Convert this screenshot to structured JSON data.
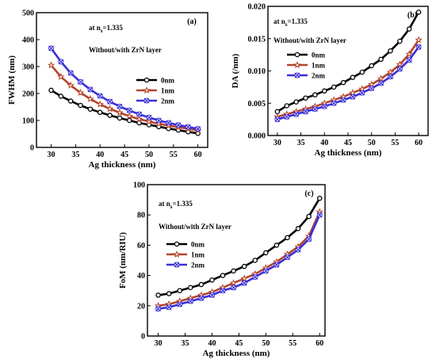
{
  "chart_data": [
    {
      "type": "line",
      "panel_label": "(a)",
      "xlabel": "Ag thickness (nm)",
      "ylabel": "FWHM (nm)",
      "xlim": [
        27,
        62
      ],
      "ylim": [
        0,
        500
      ],
      "xticks": [
        30,
        35,
        40,
        45,
        50,
        55,
        60
      ],
      "yticks": [
        0,
        100,
        200,
        300,
        400,
        500
      ],
      "ytick_labels": [
        "0",
        "100",
        "200",
        "300",
        "400",
        "500"
      ],
      "annotation_prefix": "at n",
      "annotation_sub": "s",
      "annotation_suffix": "=1.335",
      "legend_title": "Without/with ZrN layer",
      "x": [
        30,
        32,
        34,
        36,
        38,
        40,
        42,
        44,
        46,
        48,
        50,
        52,
        54,
        56,
        58,
        60
      ],
      "series": [
        {
          "name": "0nm",
          "color": "#000000",
          "marker": "circle",
          "values": [
            212,
            190,
            172,
            156,
            142,
            130,
            119,
            109,
            100,
            91,
            84,
            77,
            70,
            64,
            58,
            52
          ]
        },
        {
          "name": "1nm",
          "color": "#b5442a",
          "marker": "star",
          "values": [
            305,
            262,
            230,
            203,
            180,
            160,
            143,
            129,
            116,
            105,
            96,
            88,
            81,
            75,
            69,
            63
          ]
        },
        {
          "name": "2nm",
          "color": "#3a2fd6",
          "marker": "cross",
          "values": [
            368,
            318,
            276,
            243,
            215,
            191,
            170,
            152,
            137,
            123,
            111,
            100,
            91,
            83,
            76,
            69
          ]
        }
      ]
    },
    {
      "type": "line",
      "panel_label": "(b)",
      "xlabel": "Ag thickness (nm)",
      "ylabel": "DA (/nm)",
      "xlim": [
        28,
        62
      ],
      "ylim": [
        0,
        0.02
      ],
      "xticks": [
        30,
        35,
        40,
        45,
        50,
        55,
        60
      ],
      "yticks": [
        0,
        0.005,
        0.01,
        0.015,
        0.02
      ],
      "ytick_labels": [
        "0.000",
        "0.005",
        "0.010",
        "0.015",
        "0.020"
      ],
      "annotation_prefix": "at n",
      "annotation_sub": "s",
      "annotation_suffix": "=1.335",
      "legend_title": "Without/with ZrN layer",
      "x": [
        30,
        32,
        34,
        36,
        38,
        40,
        42,
        44,
        46,
        48,
        50,
        52,
        54,
        56,
        58,
        60
      ],
      "series": [
        {
          "name": "0nm",
          "color": "#000000",
          "marker": "circle",
          "values": [
            0.0037,
            0.0046,
            0.0052,
            0.0058,
            0.0063,
            0.0069,
            0.0075,
            0.0082,
            0.009,
            0.0098,
            0.0108,
            0.0118,
            0.0131,
            0.0146,
            0.0165,
            0.0191
          ]
        },
        {
          "name": "1nm",
          "color": "#b5442a",
          "marker": "star",
          "values": [
            0.0029,
            0.0033,
            0.0037,
            0.0041,
            0.0045,
            0.005,
            0.0055,
            0.006,
            0.0066,
            0.0072,
            0.0079,
            0.0088,
            0.0098,
            0.011,
            0.0126,
            0.0148
          ]
        },
        {
          "name": "2nm",
          "color": "#3a2fd6",
          "marker": "cross",
          "values": [
            0.0025,
            0.0029,
            0.0033,
            0.0037,
            0.0041,
            0.0045,
            0.005,
            0.0055,
            0.006,
            0.0066,
            0.0073,
            0.0081,
            0.0091,
            0.0103,
            0.0117,
            0.0137
          ]
        }
      ]
    },
    {
      "type": "line",
      "panel_label": "(c)",
      "xlabel": "Ag thickness (nm)",
      "ylabel": "FoM (nm/RIU)",
      "xlim": [
        28,
        61
      ],
      "ylim": [
        0,
        100
      ],
      "xticks": [
        30,
        35,
        40,
        45,
        50,
        55,
        60
      ],
      "yticks": [
        0,
        20,
        40,
        60,
        80,
        100
      ],
      "ytick_labels": [
        "0",
        "20",
        "40",
        "60",
        "80",
        "100"
      ],
      "annotation_prefix": "at n",
      "annotation_sub": "s",
      "annotation_suffix": "=1.335",
      "legend_title": "Without/with ZrN layer",
      "x": [
        30,
        32,
        34,
        36,
        38,
        40,
        42,
        44,
        46,
        48,
        50,
        52,
        54,
        56,
        58,
        60
      ],
      "series": [
        {
          "name": "0nm",
          "color": "#000000",
          "marker": "circle",
          "values": [
            27,
            28,
            30,
            32,
            34,
            37,
            40,
            43,
            46,
            50,
            55,
            60,
            65,
            71,
            79,
            91
          ]
        },
        {
          "name": "1nm",
          "color": "#b5442a",
          "marker": "star",
          "values": [
            20,
            21,
            23,
            25,
            27,
            29,
            32,
            35,
            38,
            41,
            45,
            49,
            54,
            59,
            66,
            82
          ]
        },
        {
          "name": "2nm",
          "color": "#3a2fd6",
          "marker": "cross",
          "values": [
            18,
            19,
            21,
            23,
            25,
            27,
            30,
            32,
            35,
            39,
            43,
            47,
            52,
            57,
            64,
            80
          ]
        }
      ]
    }
  ]
}
